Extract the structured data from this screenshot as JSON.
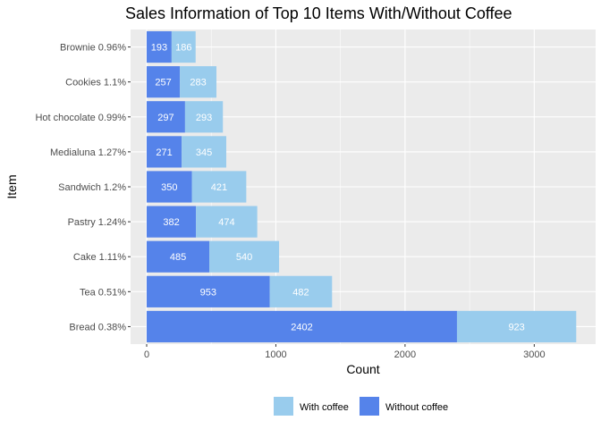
{
  "chart_data": {
    "type": "bar",
    "orientation": "horizontal",
    "stacked": true,
    "title": "Sales Information of Top 10 Items With/Without Coffee",
    "xlabel": "Count",
    "ylabel": "Item",
    "xlim": [
      0,
      3325
    ],
    "xticks": [
      0,
      1000,
      2000,
      3000
    ],
    "xtick_labels": [
      "0",
      "1000",
      "2000",
      "3000"
    ],
    "grid": true,
    "legend_position": "bottom",
    "categories": [
      "Brownie 0.96%",
      "Cookies 1.1%",
      "Hot chocolate 0.99%",
      "Medialuna 1.27%",
      "Sandwich 1.2%",
      "Pastry 1.24%",
      "Cake 1.11%",
      "Tea 0.51%",
      "Bread 0.38%"
    ],
    "series": [
      {
        "name": "Without coffee",
        "color": "#5583EA",
        "values": [
          193,
          257,
          297,
          271,
          350,
          382,
          485,
          953,
          2402
        ]
      },
      {
        "name": "With coffee",
        "color": "#99CCED",
        "values": [
          186,
          283,
          293,
          345,
          421,
          474,
          540,
          482,
          923
        ]
      }
    ],
    "legend_order": [
      "With coffee",
      "Without coffee"
    ],
    "colors": {
      "panel": "#EBEBEB",
      "grid": "#FFFFFF",
      "text": "#4D4D4D"
    }
  }
}
